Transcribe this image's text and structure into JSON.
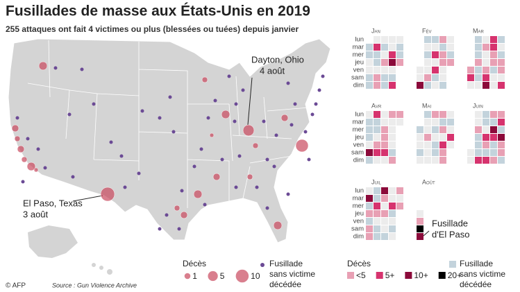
{
  "header": {
    "title": "Fusillades de masse aux États-Unis en 2019",
    "subtitle": "255 attaques ont fait 4 victimes ou plus (blessées ou tuées) depuis janvier"
  },
  "annotations": {
    "dayton": [
      "Dayton, Ohio",
      "4 août"
    ],
    "el_paso": [
      "El Paso, Texas",
      "3 août"
    ],
    "calendar": [
      "Fusillade",
      "d'El Paso"
    ]
  },
  "calendar": {
    "months": [
      "Jan",
      "Fév",
      "Mar",
      "Avr",
      "Mai",
      "Juin",
      "Juil",
      "Août"
    ],
    "days": [
      "lun",
      "mar",
      "mer",
      "jeu",
      "ven",
      "sam",
      "dim"
    ]
  },
  "map_legend": {
    "title": "Décès",
    "sizes": [
      1,
      5,
      10
    ],
    "other": [
      "Fusillade",
      "sans victime",
      "décédée"
    ]
  },
  "calendar_legend": {
    "title": "Décès",
    "levels": [
      "<5",
      "5+",
      "10+",
      "20+"
    ],
    "other": [
      "Fusillade",
      "sans victime",
      "décédée"
    ]
  },
  "footer": {
    "credit": "© AFP",
    "source": "Source : Gun Violence Archive"
  }
}
